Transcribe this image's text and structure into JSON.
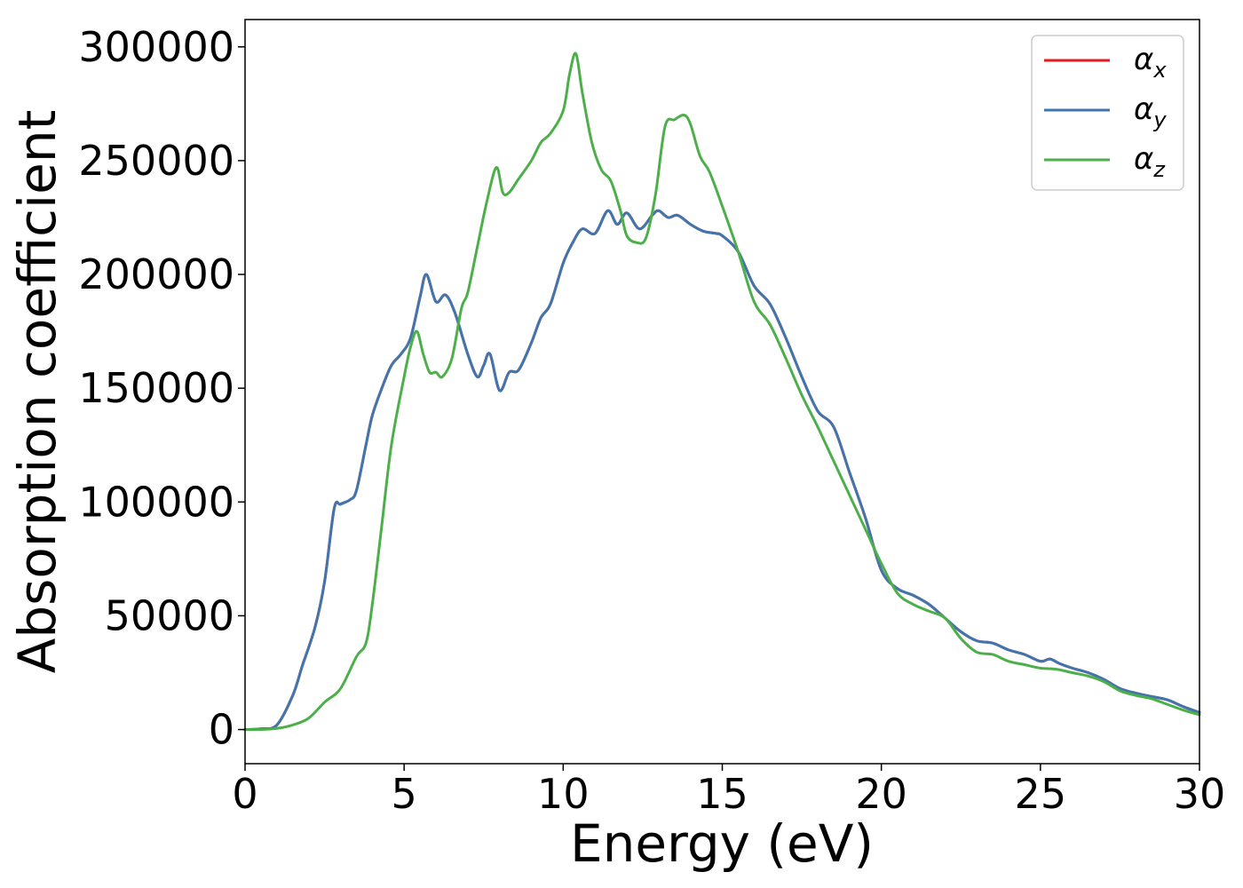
{
  "chart_data": {
    "type": "line",
    "title": "",
    "xlabel": "Energy (eV)",
    "ylabel": "Absorption coefficient",
    "xlim": [
      0,
      30
    ],
    "ylim": [
      -15000,
      312000
    ],
    "xticks": [
      0,
      5,
      10,
      15,
      20,
      25,
      30
    ],
    "yticks": [
      0,
      50000,
      100000,
      150000,
      200000,
      250000,
      300000
    ],
    "grid": false,
    "legend_position": "top-right",
    "series": [
      {
        "name": "α_x",
        "symbol": "α",
        "subscript": "x",
        "color": "#e41a1c",
        "x": [
          0,
          0.5,
          1.0,
          1.5,
          1.8,
          2.2,
          2.5,
          2.8,
          3.0,
          3.3,
          3.5,
          3.8,
          4.0,
          4.3,
          4.6,
          4.9,
          5.2,
          5.5,
          5.7,
          6.0,
          6.3,
          6.6,
          7.0,
          7.3,
          7.5,
          7.7,
          8.0,
          8.3,
          8.6,
          9.0,
          9.3,
          9.6,
          10.0,
          10.3,
          10.6,
          11.0,
          11.4,
          11.7,
          12.0,
          12.4,
          12.8,
          13.0,
          13.3,
          13.6,
          14.0,
          14.4,
          14.8,
          15.0,
          15.5,
          16.0,
          16.5,
          17.0,
          17.5,
          18.0,
          18.5,
          19.0,
          19.5,
          20.0,
          20.5,
          21.0,
          21.5,
          22.0,
          22.5,
          23.0,
          23.5,
          24.0,
          24.5,
          25.0,
          25.3,
          25.6,
          26.0,
          26.5,
          27.0,
          27.5,
          28.0,
          28.5,
          29.0,
          29.5,
          30.0
        ],
        "values": [
          0,
          300,
          2000,
          15000,
          28000,
          45000,
          65000,
          97000,
          99000,
          101000,
          105000,
          125000,
          138000,
          150000,
          160000,
          165000,
          172000,
          190000,
          200000,
          188000,
          191000,
          183000,
          165000,
          155000,
          160000,
          165000,
          149000,
          157000,
          158000,
          170000,
          181000,
          187000,
          205000,
          214000,
          220000,
          218000,
          228000,
          222000,
          227000,
          220000,
          226000,
          228000,
          225000,
          226000,
          222000,
          219000,
          218000,
          217000,
          210000,
          195000,
          187000,
          172000,
          155000,
          140000,
          133000,
          113000,
          93000,
          70000,
          62000,
          59000,
          55000,
          49000,
          43000,
          39000,
          38000,
          35000,
          33000,
          30000,
          31000,
          29000,
          27000,
          25000,
          22000,
          18000,
          16000,
          14500,
          13000,
          10000,
          7500
        ]
      },
      {
        "name": "α_y",
        "symbol": "α",
        "subscript": "y",
        "color": "#3f76ad",
        "x": [
          0,
          0.5,
          1.0,
          1.5,
          1.8,
          2.2,
          2.5,
          2.8,
          3.0,
          3.3,
          3.5,
          3.8,
          4.0,
          4.3,
          4.6,
          4.9,
          5.2,
          5.5,
          5.7,
          6.0,
          6.3,
          6.6,
          7.0,
          7.3,
          7.5,
          7.7,
          8.0,
          8.3,
          8.6,
          9.0,
          9.3,
          9.6,
          10.0,
          10.3,
          10.6,
          11.0,
          11.4,
          11.7,
          12.0,
          12.4,
          12.8,
          13.0,
          13.3,
          13.6,
          14.0,
          14.4,
          14.8,
          15.0,
          15.5,
          16.0,
          16.5,
          17.0,
          17.5,
          18.0,
          18.5,
          19.0,
          19.5,
          20.0,
          20.5,
          21.0,
          21.5,
          22.0,
          22.5,
          23.0,
          23.5,
          24.0,
          24.5,
          25.0,
          25.3,
          25.6,
          26.0,
          26.5,
          27.0,
          27.5,
          28.0,
          28.5,
          29.0,
          29.5,
          30.0
        ],
        "values": [
          0,
          300,
          2000,
          15000,
          28000,
          45000,
          65000,
          97000,
          99000,
          101000,
          105000,
          125000,
          138000,
          150000,
          160000,
          165000,
          172000,
          190000,
          200000,
          188000,
          191000,
          183000,
          165000,
          155000,
          160000,
          165000,
          149000,
          157000,
          158000,
          170000,
          181000,
          187000,
          205000,
          214000,
          220000,
          218000,
          228000,
          222000,
          227000,
          220000,
          226000,
          228000,
          225000,
          226000,
          222000,
          219000,
          218000,
          217000,
          210000,
          195000,
          187000,
          172000,
          155000,
          140000,
          133000,
          113000,
          93000,
          70000,
          62000,
          59000,
          55000,
          49000,
          43000,
          39000,
          38000,
          35000,
          33000,
          30000,
          31000,
          29000,
          27000,
          25000,
          22000,
          18000,
          16000,
          14500,
          13000,
          10000,
          7500
        ]
      },
      {
        "name": "α_z",
        "symbol": "α",
        "subscript": "z",
        "color": "#4daf4a",
        "x": [
          0,
          0.5,
          1.0,
          1.5,
          2.0,
          2.5,
          3.0,
          3.5,
          3.8,
          4.0,
          4.3,
          4.6,
          5.0,
          5.2,
          5.4,
          5.6,
          5.8,
          6.0,
          6.2,
          6.5,
          6.8,
          7.0,
          7.3,
          7.6,
          7.9,
          8.1,
          8.3,
          8.6,
          9.0,
          9.3,
          9.6,
          10.0,
          10.2,
          10.4,
          10.6,
          10.9,
          11.2,
          11.5,
          11.8,
          12.0,
          12.3,
          12.6,
          12.9,
          13.2,
          13.5,
          13.8,
          14.0,
          14.3,
          14.6,
          15.0,
          15.5,
          16.0,
          16.5,
          17.0,
          17.5,
          18.0,
          18.5,
          19.0,
          19.5,
          20.0,
          20.5,
          21.0,
          21.5,
          22.0,
          22.5,
          23.0,
          23.5,
          24.0,
          24.5,
          25.0,
          25.5,
          26.0,
          26.5,
          27.0,
          27.5,
          28.0,
          28.5,
          29.0,
          29.5,
          30.0
        ],
        "values": [
          0,
          0,
          500,
          2000,
          5000,
          12000,
          18000,
          32000,
          38000,
          55000,
          90000,
          125000,
          155000,
          168000,
          175000,
          165000,
          157000,
          157000,
          155000,
          163000,
          185000,
          192000,
          212000,
          232000,
          247000,
          236000,
          236000,
          242000,
          250000,
          258000,
          262000,
          272000,
          288000,
          297000,
          280000,
          258000,
          246000,
          241000,
          228000,
          217000,
          214000,
          216000,
          235000,
          265000,
          268000,
          270000,
          266000,
          252000,
          245000,
          230000,
          210000,
          188000,
          178000,
          163000,
          147000,
          133000,
          118000,
          103000,
          88000,
          73000,
          60000,
          55000,
          52000,
          49000,
          40000,
          34000,
          33000,
          30000,
          28500,
          27000,
          26500,
          25000,
          23500,
          21000,
          17000,
          15000,
          13500,
          11000,
          8500,
          6500
        ]
      }
    ]
  }
}
